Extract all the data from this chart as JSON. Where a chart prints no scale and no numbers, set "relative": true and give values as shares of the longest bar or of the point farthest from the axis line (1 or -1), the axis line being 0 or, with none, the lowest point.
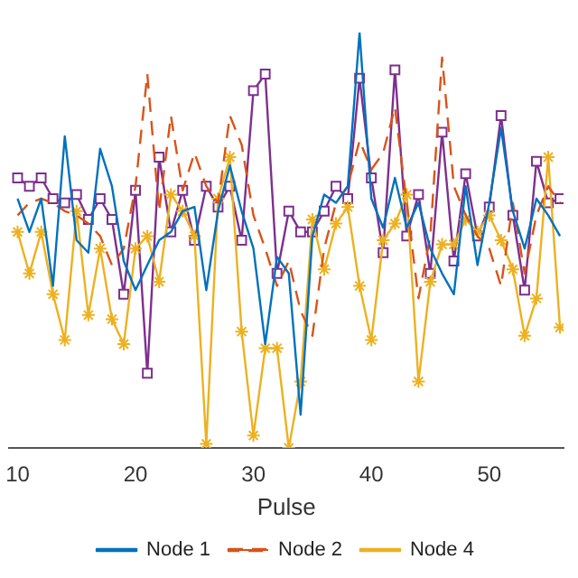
{
  "chart_data": {
    "type": "line",
    "xlabel": "Pulse",
    "relative": true,
    "legend": "bottom",
    "grid": false,
    "x": [
      10,
      11,
      12,
      13,
      14,
      15,
      16,
      17,
      18,
      19,
      20,
      21,
      22,
      23,
      24,
      25,
      26,
      27,
      28,
      29,
      30,
      31,
      32,
      33,
      34,
      35,
      36,
      37,
      38,
      39,
      40,
      41,
      42,
      43,
      44,
      45,
      46,
      47,
      48,
      49,
      50,
      51,
      52,
      53,
      54,
      55,
      56
    ],
    "xlim": [
      9.3,
      56.3
    ],
    "xticks": [
      10,
      20,
      30,
      40,
      50
    ],
    "series": [
      {
        "name": "Node 1",
        "color": "#0072bd",
        "line_style": "solid",
        "marker": "none",
        "values": [
          0.6,
          0.52,
          0.6,
          0.39,
          0.75,
          0.5,
          0.47,
          0.72,
          0.63,
          0.45,
          0.38,
          0.44,
          0.5,
          0.52,
          0.57,
          0.58,
          0.38,
          0.57,
          0.68,
          0.57,
          0.48,
          0.25,
          0.46,
          0.42,
          0.08,
          0.51,
          0.61,
          0.59,
          0.63,
          1.0,
          0.6,
          0.53,
          0.65,
          0.53,
          0.59,
          0.48,
          0.42,
          0.37,
          0.63,
          0.44,
          0.59,
          0.77,
          0.57,
          0.48,
          0.6,
          0.56,
          0.51
        ]
      },
      {
        "name": "Node 2",
        "color": "#d95319",
        "line_style": "dashed",
        "marker": "none",
        "values": [
          0.56,
          0.59,
          0.6,
          0.59,
          0.57,
          0.56,
          0.54,
          0.51,
          0.44,
          0.48,
          0.63,
          0.9,
          0.57,
          0.8,
          0.62,
          0.71,
          0.63,
          0.59,
          0.8,
          0.73,
          0.56,
          0.48,
          0.39,
          0.45,
          0.33,
          0.27,
          0.48,
          0.59,
          0.63,
          0.74,
          0.67,
          0.71,
          0.82,
          0.59,
          0.36,
          0.51,
          0.94,
          0.63,
          0.56,
          0.51,
          0.48,
          0.39,
          0.59,
          0.42,
          0.56,
          0.63,
          0.59
        ]
      },
      {
        "name": "Node 4",
        "color": "#edb120",
        "line_style": "solid",
        "marker": "cross",
        "values": [
          0.52,
          0.42,
          0.52,
          0.37,
          0.26,
          0.57,
          0.32,
          0.48,
          0.31,
          0.25,
          0.48,
          0.51,
          0.4,
          0.61,
          0.57,
          0.51,
          0.01,
          0.6,
          0.7,
          0.28,
          0.03,
          0.24,
          0.24,
          0.0,
          0.16,
          0.55,
          0.43,
          0.54,
          0.58,
          0.39,
          0.26,
          0.5,
          0.54,
          0.61,
          0.16,
          0.4,
          0.49,
          0.49,
          0.55,
          0.52,
          0.56,
          0.5,
          0.43,
          0.27,
          0.36,
          0.7,
          0.29
        ]
      },
      {
        "color": "#7e2f8e",
        "line_style": "solid",
        "marker": "square",
        "values": [
          0.65,
          0.63,
          0.65,
          0.6,
          0.59,
          0.61,
          0.55,
          0.6,
          0.55,
          0.37,
          0.62,
          0.18,
          0.7,
          0.52,
          0.62,
          0.5,
          0.63,
          0.58,
          0.63,
          0.5,
          0.86,
          0.9,
          0.42,
          0.57,
          0.52,
          0.52,
          0.57,
          0.63,
          0.6,
          0.89,
          0.65,
          0.47,
          0.91,
          0.51,
          0.61,
          0.42,
          0.76,
          0.45,
          0.66,
          0.51,
          0.58,
          0.8,
          0.56,
          0.38,
          0.69,
          0.59,
          0.6
        ]
      }
    ]
  }
}
